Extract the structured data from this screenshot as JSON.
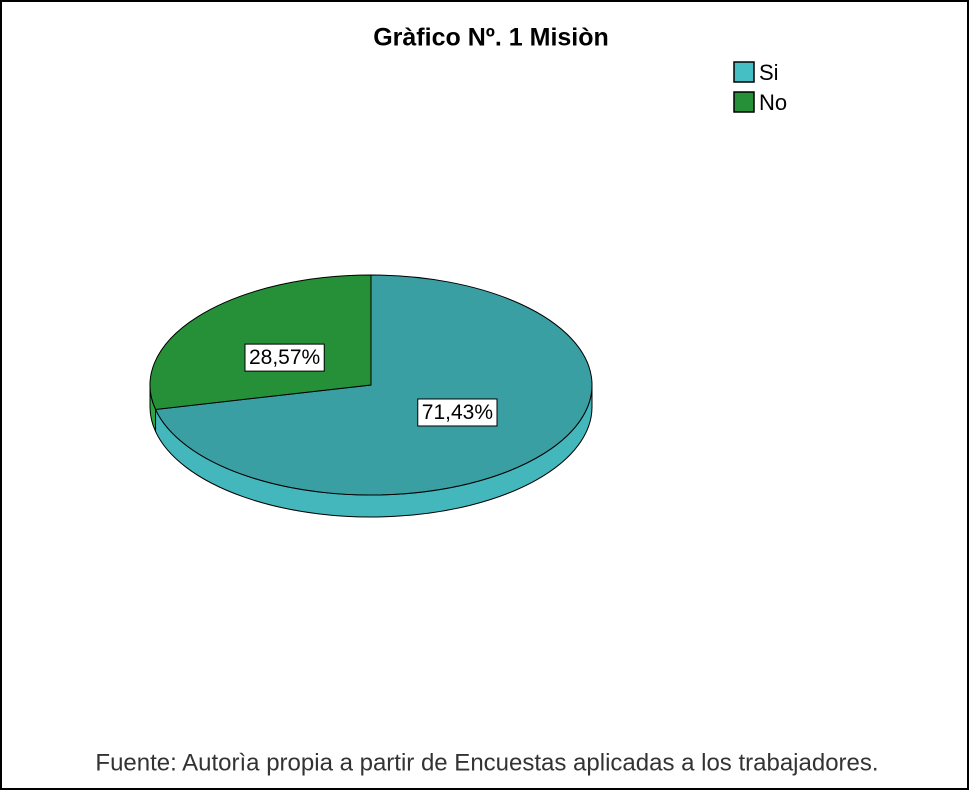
{
  "chart_data": {
    "type": "pie",
    "title": "Gràfico Nº. 1 Misiòn",
    "categories": [
      "Si",
      "No"
    ],
    "values": [
      71.43,
      28.57
    ],
    "value_labels": [
      "71,43%",
      "28,57%"
    ],
    "colors": [
      "#3a9fa3",
      "#259038"
    ],
    "legend": "top-right",
    "footnote": "Fuente: Autorìa propia a partir de  Encuestas aplicadas a los trabajadores."
  }
}
